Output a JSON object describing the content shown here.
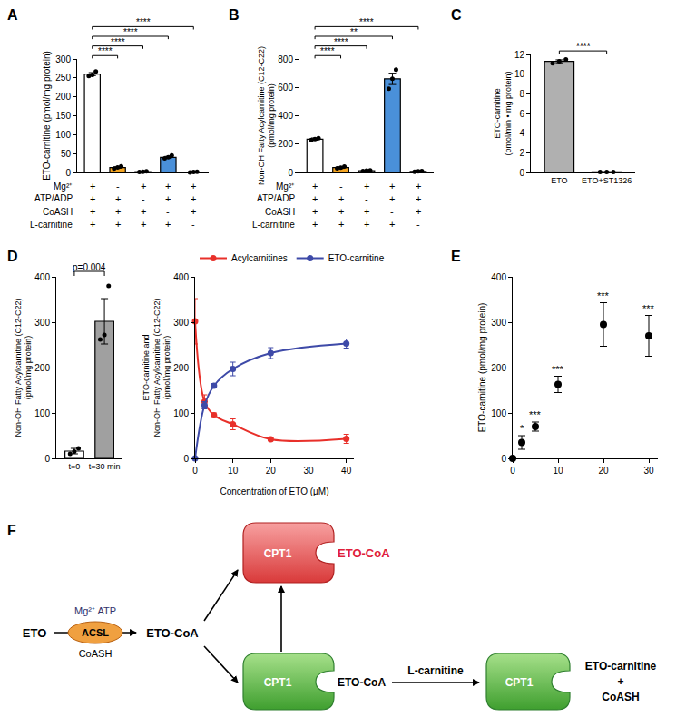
{
  "chart_data": [
    {
      "panel": "A",
      "type": "bar",
      "ylabel": "ETO-carnitine (pmol/mg protein)",
      "categories": [
        null,
        null,
        null,
        null,
        null
      ],
      "values": [
        260,
        13,
        2,
        40,
        1
      ],
      "errors": [
        4,
        2,
        0.5,
        2.5,
        0.5
      ],
      "points": [
        [
          255,
          258,
          267
        ],
        [
          10,
          13,
          16
        ],
        [
          1,
          2,
          3
        ],
        [
          37,
          40,
          45
        ],
        [
          0,
          1,
          2
        ]
      ],
      "colors": [
        "#ffffff",
        "#f5a623",
        "#ffffff",
        "#4a90d9",
        "#ffffff"
      ],
      "ylim": [
        0,
        300
      ],
      "yticks": [
        0,
        50,
        100,
        150,
        200,
        250,
        300
      ],
      "tick_labels": "y",
      "grid": false,
      "conditions": [
        {
          "label": "Mg²⁺",
          "marks": [
            "+",
            "-",
            "+",
            "+",
            "+"
          ]
        },
        {
          "label": "ATP/ADP",
          "marks": [
            "+",
            "+",
            "-",
            "+",
            "+"
          ]
        },
        {
          "label": "CoASH",
          "marks": [
            "+",
            "+",
            "+",
            "-",
            "+"
          ]
        },
        {
          "label": "L-carnitine",
          "marks": [
            "+",
            "+",
            "+",
            "+",
            "-"
          ]
        }
      ],
      "comparisons": [
        {
          "from": 0,
          "to": 1,
          "label": "****"
        },
        {
          "from": 0,
          "to": 2,
          "label": "****"
        },
        {
          "from": 0,
          "to": 3,
          "label": "****"
        },
        {
          "from": 0,
          "to": 4,
          "label": "****"
        }
      ]
    },
    {
      "panel": "B",
      "type": "bar",
      "ylabel": [
        "Non-OH Fatty Acylcarnitine (C12-C22)",
        "(pmol/mg protein)"
      ],
      "categories": [
        null,
        null,
        null,
        null,
        null
      ],
      "values": [
        235,
        34,
        12,
        660,
        8
      ],
      "errors": [
        8,
        6,
        2,
        40,
        2
      ],
      "points": [
        [
          228,
          235,
          242
        ],
        [
          28,
          33,
          42
        ],
        [
          9,
          12,
          15
        ],
        [
          590,
          660,
          725
        ],
        [
          5,
          8,
          10
        ]
      ],
      "colors": [
        "#ffffff",
        "#f5a623",
        "#ffffff",
        "#4a90d9",
        "#ffffff"
      ],
      "ylim": [
        0,
        800
      ],
      "yticks": [
        0,
        200,
        400,
        600,
        800
      ],
      "tick_labels": "y",
      "grid": false,
      "conditions": [
        {
          "label": "Mg²⁺",
          "marks": [
            "+",
            "-",
            "+",
            "+",
            "+"
          ]
        },
        {
          "label": "ATP/ADP",
          "marks": [
            "+",
            "+",
            "-",
            "+",
            "+"
          ]
        },
        {
          "label": "CoASH",
          "marks": [
            "+",
            "+",
            "+",
            "-",
            "+"
          ]
        },
        {
          "label": "L-carnitine",
          "marks": [
            "+",
            "+",
            "+",
            "+",
            "-"
          ]
        }
      ],
      "comparisons": [
        {
          "from": 0,
          "to": 1,
          "label": "****"
        },
        {
          "from": 0,
          "to": 2,
          "label": "****"
        },
        {
          "from": 0,
          "to": 3,
          "label": "**"
        },
        {
          "from": 0,
          "to": 4,
          "label": "****"
        }
      ]
    },
    {
      "panel": "C",
      "type": "bar",
      "ylabel": [
        "ETO-carnitine",
        "(pmol/min • mg protein)"
      ],
      "categories": [
        "ETO",
        "ETO+ST1326"
      ],
      "values": [
        11.3,
        0.05
      ],
      "errors": [
        0.15,
        0.02
      ],
      "points": [
        [
          11.1,
          11.3,
          11.5
        ],
        [
          0.05,
          0.05,
          0.05
        ]
      ],
      "colors": [
        "#b0b0b0",
        "#ffffff"
      ],
      "ylim": [
        0,
        12
      ],
      "yticks": [
        0,
        2,
        4,
        6,
        8,
        10,
        12
      ],
      "grid": false,
      "comparisons": [
        {
          "from": 0,
          "to": 1,
          "label": "****"
        }
      ]
    },
    {
      "panel": "D",
      "type": "bar",
      "ylabel": [
        "Non-OH Fatty Acylcarnitine (C12-C22)",
        "(pmol/mg protein)"
      ],
      "categories": [
        "t=0",
        "t=30 min"
      ],
      "values": [
        16,
        302
      ],
      "errors": [
        6,
        50
      ],
      "points": [
        [
          10,
          15,
          22
        ],
        [
          262,
          272,
          380
        ]
      ],
      "colors": [
        "#ffffff",
        "#a0a0a0"
      ],
      "ylim": [
        0,
        400
      ],
      "yticks": [
        0,
        100,
        200,
        300,
        400
      ],
      "grid": false,
      "comparisons": [
        {
          "from": 0,
          "to": 1,
          "label": "p=0.004"
        }
      ]
    },
    {
      "type": "line",
      "xlabel": "Concentration of ETO (µM)",
      "ylabel": [
        "ETO-carnitine and",
        "Non-OH Fatty Acylcarnitine (C12-C22)",
        "(pmol/mg protein)"
      ],
      "x": [
        0,
        2.5,
        5,
        10,
        20,
        40
      ],
      "series": [
        {
          "name": "Acylcarnitines",
          "color": "#e8302a",
          "marker": "circle",
          "line_style": "solid",
          "values": [
            302,
            125,
            95,
            75,
            42,
            43
          ],
          "errors": [
            50,
            15,
            5,
            12,
            3,
            10
          ]
        },
        {
          "name": "ETO-carnitine",
          "color": "#3e4aa8",
          "marker": "circle",
          "line_style": "solid",
          "values": [
            0,
            117,
            160,
            197,
            232,
            253
          ],
          "errors": [
            0,
            8,
            5,
            15,
            12,
            10
          ]
        }
      ],
      "xlim": [
        0,
        42
      ],
      "xticks": [
        0,
        10,
        20,
        30,
        40
      ],
      "ylim": [
        0,
        400
      ],
      "yticks": [
        0,
        100,
        200,
        300,
        400
      ],
      "grid": false,
      "legend": "top"
    },
    {
      "panel": "E",
      "type": "scatter",
      "ylabel": "ETO-carnitine (pmol/mg protein)",
      "x": [
        0,
        2,
        5,
        10,
        20,
        30
      ],
      "values": [
        0,
        35,
        70,
        163,
        295,
        270
      ],
      "errors": [
        3,
        15,
        10,
        18,
        48,
        45
      ],
      "significance": [
        null,
        "*",
        "***",
        "***",
        "***",
        "***"
      ],
      "color": "#000000",
      "marker": "circle",
      "xlim": [
        0,
        32
      ],
      "xticks": [
        0,
        10,
        20,
        30
      ],
      "ylim": [
        0,
        400
      ],
      "yticks": [
        0,
        100,
        200,
        300,
        400
      ],
      "grid": false
    }
  ],
  "diagram": {
    "panel": "F",
    "substrate": "ETO",
    "enzyme": "ACSL",
    "cofactors": "Mg²⁺ ATP",
    "coenzyme": "CoASH",
    "product": "ETO-CoA",
    "transferase": "CPT1",
    "inhibited_ligand": "ETO-CoA",
    "bound_ligand": "ETO-CoA",
    "cosubstrate": "L-carnitine",
    "final_products": [
      "ETO-carnitine",
      "+",
      "CoASH"
    ]
  }
}
